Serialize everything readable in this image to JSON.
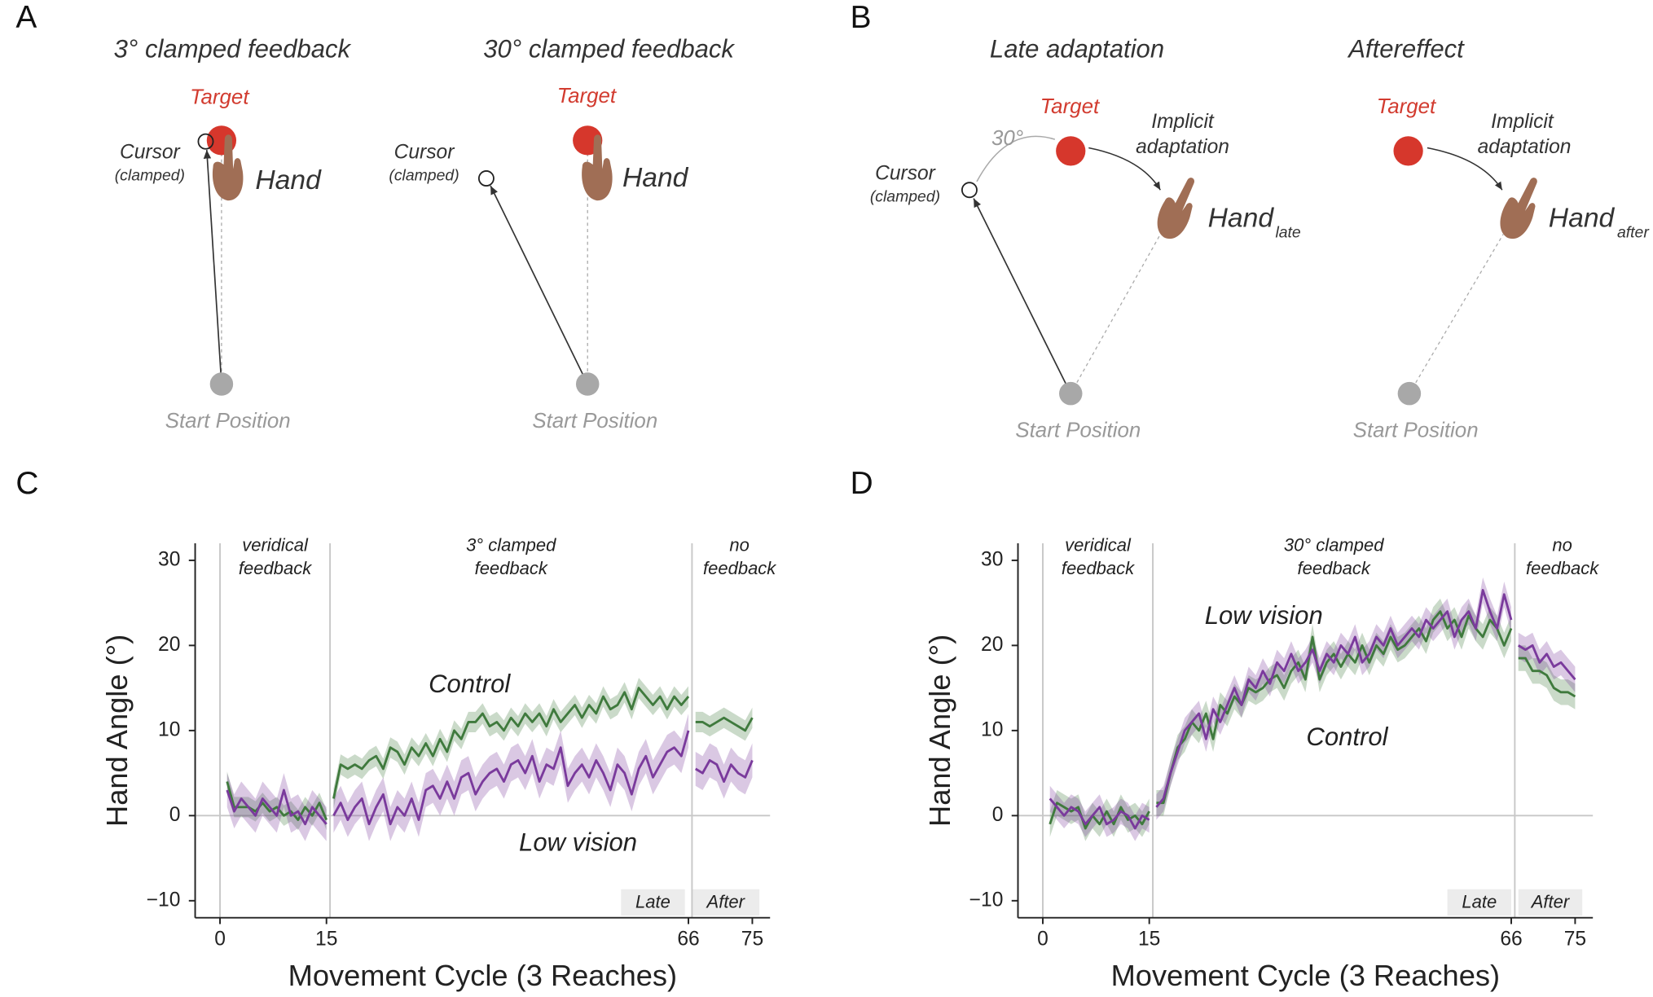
{
  "panel_labels": [
    "A",
    "B",
    "C",
    "D"
  ],
  "diagrams": [
    {
      "title": "3° clamped feedback",
      "target": "Target",
      "cursor": "Cursor",
      "cursor_note": "(clamped)",
      "hand": "Hand",
      "start": "Start Position"
    },
    {
      "title": "30° clamped feedback",
      "target": "Target",
      "cursor": "Cursor",
      "cursor_note": "(clamped)",
      "hand": "Hand",
      "start": "Start Position"
    },
    {
      "title": "Late adaptation",
      "target": "Target",
      "angle": "30°",
      "cursor": "Cursor",
      "cursor_note": "(clamped)",
      "note": [
        "Implicit",
        "adaptation"
      ],
      "hand": "Hand",
      "hand_sub": "late",
      "start": "Start Position"
    },
    {
      "title": "Aftereffect",
      "target": "Target",
      "note": [
        "Implicit",
        "adaptation"
      ],
      "hand": "Hand",
      "hand_sub": "after",
      "start": "Start Position"
    }
  ],
  "chart_data": [
    {
      "type": "line",
      "x_label": "Movement Cycle (3 Reaches)",
      "y_label": "Hand Angle (°)",
      "xlim": [
        -3.5,
        77.5
      ],
      "xticks": [
        0,
        15,
        66,
        75
      ],
      "ylim": [
        -12,
        32
      ],
      "yticks": [
        {
          "value": -10,
          "label": "−10"
        },
        0,
        10,
        20,
        30
      ],
      "phase_lines": [
        0,
        15.5,
        66.5
      ],
      "phases": [
        [
          "veridical",
          "feedback"
        ],
        [
          "3° clamped",
          "feedback"
        ],
        [
          "no",
          "feedback"
        ]
      ],
      "windows": [
        {
          "label": "Late",
          "range": [
            56.5,
            65.5
          ]
        },
        {
          "label": "After",
          "range": [
            66.5,
            76
          ]
        }
      ],
      "x": [
        1,
        2,
        3,
        4,
        5,
        6,
        7,
        8,
        9,
        10,
        11,
        12,
        13,
        14,
        15,
        16,
        17,
        18,
        19,
        20,
        21,
        22,
        23,
        24,
        25,
        26,
        27,
        28,
        29,
        30,
        31,
        32,
        33,
        34,
        35,
        36,
        37,
        38,
        39,
        40,
        41,
        42,
        43,
        44,
        45,
        46,
        47,
        48,
        49,
        50,
        51,
        52,
        53,
        54,
        55,
        56,
        57,
        58,
        59,
        60,
        61,
        62,
        63,
        64,
        65,
        66,
        67,
        68,
        69,
        70,
        71,
        72,
        73,
        74,
        75
      ],
      "series": [
        {
          "name": "Control",
          "color": "#3f7a3d",
          "error": 1.2,
          "values": [
            4,
            1,
            1,
            1,
            0.5,
            1.5,
            0.5,
            1,
            0,
            0.5,
            -0.5,
            1,
            0,
            1.5,
            -0.5,
            2,
            6,
            5.5,
            6,
            5.5,
            6.5,
            7,
            5.5,
            8,
            7.5,
            6,
            8,
            7,
            8.5,
            7,
            9,
            7.5,
            10,
            9,
            11,
            11,
            12,
            10.5,
            11,
            10,
            11.5,
            10.5,
            12,
            11,
            12,
            10.5,
            12.5,
            11,
            12,
            13,
            11.5,
            13,
            12,
            14,
            12.5,
            13,
            14.5,
            12.5,
            15,
            14,
            13,
            14,
            12.5,
            14,
            13,
            14,
            11,
            11,
            10.5,
            11,
            11.5,
            11,
            10.5,
            10,
            11.5
          ]
        },
        {
          "name": "Low vision",
          "color": "#7a3a9c",
          "error": 2,
          "values": [
            3,
            0.5,
            2,
            1,
            0,
            2,
            1,
            0,
            3,
            0,
            0.5,
            -1,
            1,
            0,
            -1,
            0,
            1.5,
            -0.5,
            1,
            2,
            -1,
            1,
            2.5,
            -1,
            1,
            0,
            2,
            -0.5,
            3,
            3.5,
            2,
            4,
            2,
            4.5,
            5,
            2.5,
            4,
            5,
            5.5,
            4,
            6,
            6.5,
            5,
            7,
            4,
            6,
            5.5,
            8,
            3.5,
            5,
            6,
            4.5,
            6.5,
            5,
            3,
            6,
            5,
            2.5,
            5.5,
            7,
            4.5,
            6,
            7.5,
            8,
            7,
            10,
            5.5,
            5,
            6.5,
            6,
            4,
            6,
            5,
            4.5,
            6.5
          ]
        }
      ]
    },
    {
      "type": "line",
      "x_label": "Movement Cycle (3 Reaches)",
      "y_label": "Hand Angle (°)",
      "xlim": [
        -3.5,
        77.5
      ],
      "xticks": [
        0,
        15,
        66,
        75
      ],
      "ylim": [
        -12,
        32
      ],
      "yticks": [
        {
          "value": -10,
          "label": "−10"
        },
        0,
        10,
        20,
        30
      ],
      "phase_lines": [
        0,
        15.5,
        66.5
      ],
      "phases": [
        [
          "veridical",
          "feedback"
        ],
        [
          "30° clamped",
          "feedback"
        ],
        [
          "no",
          "feedback"
        ]
      ],
      "windows": [
        {
          "label": "Late",
          "range": [
            57,
            66
          ]
        },
        {
          "label": "After",
          "range": [
            67,
            76
          ]
        }
      ],
      "x": [
        1,
        2,
        3,
        4,
        5,
        6,
        7,
        8,
        9,
        10,
        11,
        12,
        13,
        14,
        15,
        16,
        17,
        18,
        19,
        20,
        21,
        22,
        23,
        24,
        25,
        26,
        27,
        28,
        29,
        30,
        31,
        32,
        33,
        34,
        35,
        36,
        37,
        38,
        39,
        40,
        41,
        42,
        43,
        44,
        45,
        46,
        47,
        48,
        49,
        50,
        51,
        52,
        53,
        54,
        55,
        56,
        57,
        58,
        59,
        60,
        61,
        62,
        63,
        64,
        65,
        66,
        67,
        68,
        69,
        70,
        71,
        72,
        73,
        74,
        75
      ],
      "series": [
        {
          "name": "Control",
          "color": "#3f7a3d",
          "error": 1.5,
          "values": [
            -1,
            1.5,
            1,
            0.5,
            1,
            -1.5,
            0,
            -1,
            0.5,
            -1,
            1,
            -0.5,
            0,
            -1,
            0.5,
            1.5,
            1.5,
            5,
            8,
            9,
            11,
            10,
            12,
            9,
            13,
            12,
            14,
            13,
            15,
            14.5,
            15,
            16,
            16.5,
            15,
            17,
            18,
            16,
            21,
            16,
            18,
            19,
            17.5,
            19,
            18,
            20,
            18,
            20,
            19,
            21,
            19.5,
            20,
            21,
            22,
            20.5,
            23,
            24,
            22,
            23,
            21,
            23.5,
            22,
            21,
            23,
            22,
            20,
            22,
            18.5,
            18.5,
            17,
            17,
            16.5,
            15,
            14.5,
            14.5,
            14
          ]
        },
        {
          "name": "Low vision",
          "color": "#7a3a9c",
          "error": 1.5,
          "values": [
            2,
            1,
            0,
            1,
            0.5,
            -1,
            0,
            1,
            -1,
            -0.5,
            0.5,
            0,
            -1.5,
            0,
            -0.5,
            1,
            2,
            5,
            7.5,
            10,
            11,
            12,
            9,
            12.5,
            11,
            13,
            15,
            13,
            16,
            15,
            17,
            15.5,
            18,
            17,
            19,
            17,
            18,
            19.5,
            17,
            19,
            18,
            20,
            19,
            21,
            18,
            19,
            21,
            20,
            22,
            20,
            21,
            22,
            21,
            23,
            22,
            23,
            24,
            21,
            23,
            24,
            22,
            26.5,
            24,
            22,
            26,
            23,
            20,
            19.5,
            20,
            18,
            19,
            17.5,
            18,
            17,
            16
          ]
        }
      ]
    }
  ]
}
